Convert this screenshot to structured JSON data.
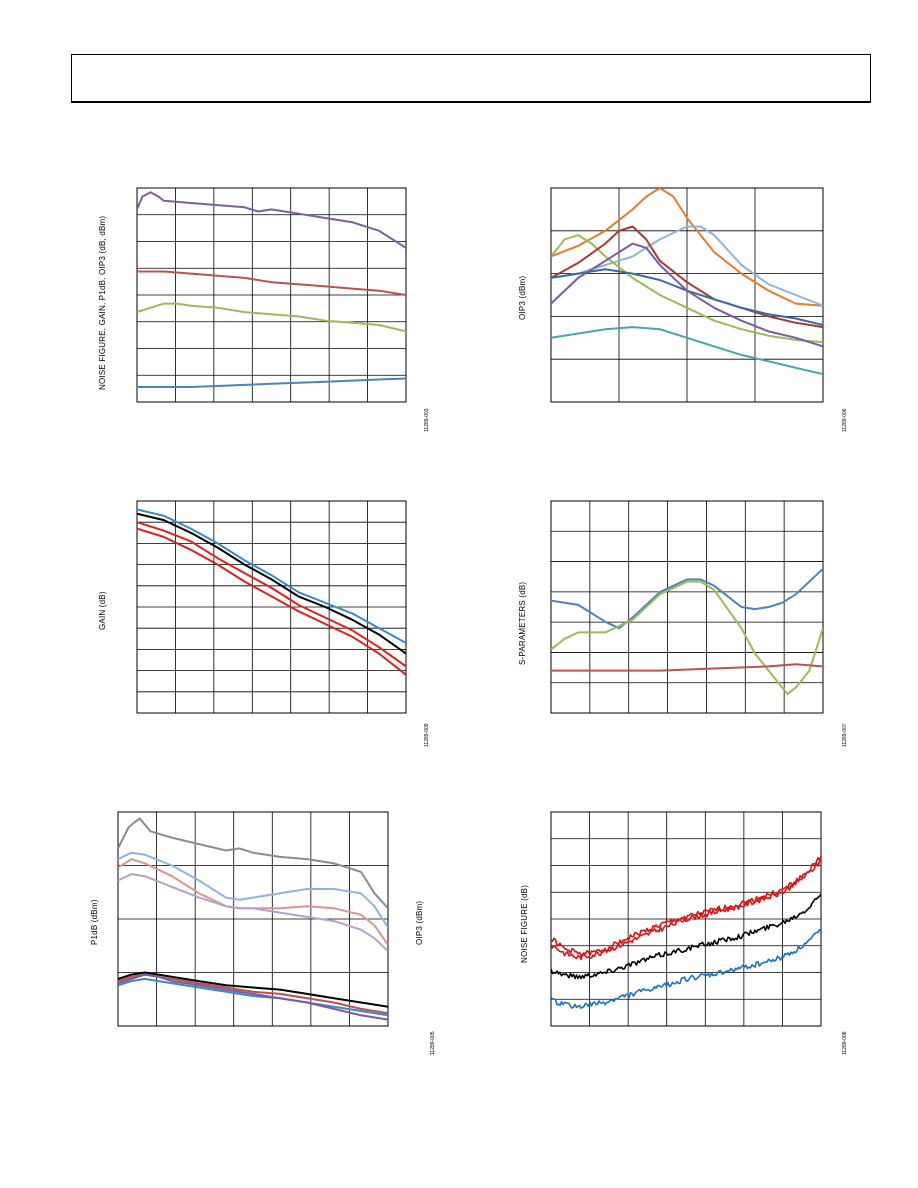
{
  "page": {
    "header_text": ""
  },
  "chart_data": [
    {
      "id": "chart-nf-gain-p1db-oip3",
      "type": "line",
      "title": "",
      "ylabel": "NOISE FIGURE, GAIN, P1dB, OIP3 (dB, dBm)",
      "figure_id": "11289-003",
      "grid": true,
      "series": [
        {
          "color": "#7d5fa0",
          "x": [
            0,
            0.02,
            0.05,
            0.08,
            0.1,
            0.2,
            0.3,
            0.4,
            0.45,
            0.5,
            0.6,
            0.7,
            0.8,
            0.9,
            1.0
          ],
          "y": [
            0.9,
            0.96,
            0.98,
            0.96,
            0.94,
            0.93,
            0.92,
            0.91,
            0.89,
            0.9,
            0.88,
            0.86,
            0.84,
            0.8,
            0.72
          ]
        },
        {
          "color": "#c0504d",
          "x": [
            0,
            0.1,
            0.2,
            0.3,
            0.4,
            0.5,
            0.6,
            0.7,
            0.8,
            0.9,
            1.0
          ],
          "y": [
            0.61,
            0.61,
            0.6,
            0.59,
            0.58,
            0.56,
            0.55,
            0.54,
            0.53,
            0.52,
            0.5
          ]
        },
        {
          "color": "#9bbb59",
          "x": [
            0,
            0.05,
            0.1,
            0.15,
            0.2,
            0.3,
            0.4,
            0.5,
            0.6,
            0.7,
            0.8,
            0.9,
            1.0
          ],
          "y": [
            0.42,
            0.44,
            0.46,
            0.46,
            0.45,
            0.44,
            0.42,
            0.41,
            0.4,
            0.38,
            0.37,
            0.36,
            0.33
          ]
        },
        {
          "color": "#4f81bd",
          "x": [
            0,
            0.1,
            0.2,
            0.3,
            0.4,
            0.5,
            0.6,
            0.7,
            0.8,
            0.9,
            1.0
          ],
          "y": [
            0.07,
            0.07,
            0.07,
            0.075,
            0.08,
            0.085,
            0.09,
            0.095,
            0.1,
            0.105,
            0.11
          ]
        }
      ]
    },
    {
      "id": "chart-oip3",
      "type": "line",
      "title": "",
      "ylabel": "OIP3 (dBm)",
      "figure_id": "11289-006",
      "grid": true,
      "series": [
        {
          "color": "#e47c2a",
          "x": [
            0,
            0.1,
            0.2,
            0.3,
            0.35,
            0.4,
            0.45,
            0.5,
            0.6,
            0.7,
            0.8,
            0.9,
            1.0
          ],
          "y": [
            0.68,
            0.73,
            0.8,
            0.9,
            0.96,
            1.0,
            0.96,
            0.86,
            0.7,
            0.6,
            0.52,
            0.46,
            0.45
          ]
        },
        {
          "color": "#95b3d7",
          "x": [
            0,
            0.1,
            0.2,
            0.3,
            0.4,
            0.5,
            0.55,
            0.6,
            0.7,
            0.8,
            0.9,
            1.0
          ],
          "y": [
            0.58,
            0.6,
            0.64,
            0.68,
            0.76,
            0.82,
            0.82,
            0.78,
            0.64,
            0.55,
            0.5,
            0.45
          ]
        },
        {
          "color": "#9bbb59",
          "x": [
            0,
            0.05,
            0.1,
            0.15,
            0.2,
            0.3,
            0.4,
            0.5,
            0.6,
            0.7,
            0.8,
            0.9,
            1.0
          ],
          "y": [
            0.68,
            0.76,
            0.78,
            0.74,
            0.68,
            0.58,
            0.5,
            0.44,
            0.38,
            0.34,
            0.31,
            0.29,
            0.28
          ]
        },
        {
          "color": "#a33b38",
          "x": [
            0,
            0.1,
            0.2,
            0.25,
            0.3,
            0.35,
            0.4,
            0.5,
            0.6,
            0.7,
            0.8,
            0.9,
            1.0
          ],
          "y": [
            0.58,
            0.65,
            0.74,
            0.8,
            0.82,
            0.76,
            0.66,
            0.56,
            0.48,
            0.44,
            0.4,
            0.37,
            0.35
          ]
        },
        {
          "color": "#3d6aa2",
          "x": [
            0,
            0.1,
            0.2,
            0.3,
            0.4,
            0.5,
            0.6,
            0.7,
            0.8,
            0.9,
            1.0
          ],
          "y": [
            0.58,
            0.6,
            0.62,
            0.6,
            0.57,
            0.52,
            0.48,
            0.44,
            0.41,
            0.39,
            0.36
          ]
        },
        {
          "color": "#7b5aa6",
          "x": [
            0,
            0.1,
            0.2,
            0.3,
            0.35,
            0.4,
            0.5,
            0.6,
            0.7,
            0.8,
            0.9,
            1.0
          ],
          "y": [
            0.46,
            0.58,
            0.66,
            0.74,
            0.72,
            0.64,
            0.52,
            0.44,
            0.38,
            0.33,
            0.3,
            0.26
          ]
        },
        {
          "color": "#4aa3b0",
          "x": [
            0,
            0.1,
            0.2,
            0.3,
            0.4,
            0.5,
            0.6,
            0.7,
            0.8,
            0.9,
            1.0
          ],
          "y": [
            0.3,
            0.32,
            0.34,
            0.35,
            0.34,
            0.3,
            0.26,
            0.22,
            0.19,
            0.16,
            0.13
          ]
        }
      ]
    },
    {
      "id": "chart-gain",
      "type": "line",
      "title": "",
      "ylabel": "GAIN (dB)",
      "figure_id": "11289-009",
      "grid": true,
      "series": [
        {
          "color": "#3a8ac4",
          "x": [
            0,
            0.1,
            0.2,
            0.3,
            0.4,
            0.5,
            0.6,
            0.7,
            0.8,
            0.9,
            1.0
          ],
          "y": [
            0.96,
            0.93,
            0.87,
            0.8,
            0.72,
            0.65,
            0.57,
            0.52,
            0.47,
            0.4,
            0.33
          ]
        },
        {
          "color": "#000000",
          "x": [
            0,
            0.1,
            0.2,
            0.3,
            0.4,
            0.5,
            0.6,
            0.7,
            0.8,
            0.9,
            1.0
          ],
          "y": [
            0.94,
            0.91,
            0.85,
            0.78,
            0.7,
            0.63,
            0.55,
            0.5,
            0.44,
            0.37,
            0.28
          ]
        },
        {
          "color": "#e02020",
          "x": [
            0,
            0.1,
            0.2,
            0.3,
            0.4,
            0.5,
            0.6,
            0.7,
            0.8,
            0.9,
            1.0
          ],
          "y": [
            0.9,
            0.86,
            0.81,
            0.73,
            0.66,
            0.59,
            0.51,
            0.45,
            0.39,
            0.31,
            0.22
          ]
        },
        {
          "color": "#e02020",
          "x": [
            0,
            0.1,
            0.2,
            0.3,
            0.4,
            0.5,
            0.6,
            0.7,
            0.8,
            0.9,
            1.0
          ],
          "y": [
            0.87,
            0.83,
            0.77,
            0.7,
            0.62,
            0.55,
            0.48,
            0.42,
            0.36,
            0.28,
            0.18
          ]
        }
      ]
    },
    {
      "id": "chart-s-parameters",
      "type": "line",
      "title": "",
      "ylabel": "S-PARAMETERS (dB)",
      "figure_id": "11289-007",
      "grid": true,
      "series": [
        {
          "color": "#4f81bd",
          "x": [
            0,
            0.1,
            0.2,
            0.25,
            0.3,
            0.4,
            0.5,
            0.55,
            0.6,
            0.7,
            0.75,
            0.8,
            0.85,
            0.9,
            1.0
          ],
          "y": [
            0.53,
            0.51,
            0.43,
            0.4,
            0.45,
            0.57,
            0.63,
            0.63,
            0.6,
            0.5,
            0.49,
            0.5,
            0.52,
            0.56,
            0.68
          ]
        },
        {
          "color": "#9bbb59",
          "x": [
            0,
            0.05,
            0.1,
            0.2,
            0.3,
            0.4,
            0.5,
            0.55,
            0.6,
            0.7,
            0.75,
            0.8,
            0.85,
            0.87,
            0.9,
            0.95,
            1.0
          ],
          "y": [
            0.3,
            0.35,
            0.38,
            0.38,
            0.44,
            0.56,
            0.62,
            0.62,
            0.58,
            0.4,
            0.28,
            0.2,
            0.12,
            0.09,
            0.12,
            0.2,
            0.4
          ]
        },
        {
          "color": "#c0504d",
          "x": [
            0,
            0.2,
            0.4,
            0.6,
            0.8,
            0.9,
            1.0
          ],
          "y": [
            0.2,
            0.2,
            0.2,
            0.21,
            0.22,
            0.23,
            0.22
          ]
        }
      ]
    },
    {
      "id": "chart-p1db-oip3",
      "type": "line",
      "title": "",
      "ylabel": "P1dB (dBm)",
      "ylabel_right": "OIP3 (dBm)",
      "figure_id": "11289-005",
      "grid": true,
      "series": [
        {
          "color": "#8c8c8c",
          "x": [
            0,
            0.04,
            0.08,
            0.12,
            0.2,
            0.3,
            0.4,
            0.45,
            0.5,
            0.6,
            0.7,
            0.8,
            0.85,
            0.9,
            0.95,
            1.0
          ],
          "y": [
            0.83,
            0.93,
            0.97,
            0.91,
            0.88,
            0.85,
            0.82,
            0.83,
            0.81,
            0.79,
            0.78,
            0.76,
            0.74,
            0.72,
            0.62,
            0.55
          ]
        },
        {
          "color": "#8eb4e3",
          "x": [
            0,
            0.05,
            0.1,
            0.2,
            0.3,
            0.4,
            0.45,
            0.5,
            0.6,
            0.7,
            0.8,
            0.9,
            0.95,
            1.0
          ],
          "y": [
            0.78,
            0.81,
            0.8,
            0.75,
            0.68,
            0.6,
            0.59,
            0.6,
            0.62,
            0.64,
            0.64,
            0.62,
            0.56,
            0.46
          ]
        },
        {
          "color": "#d99594",
          "x": [
            0,
            0.05,
            0.1,
            0.2,
            0.3,
            0.4,
            0.45,
            0.5,
            0.6,
            0.7,
            0.8,
            0.9,
            0.95,
            1.0
          ],
          "y": [
            0.74,
            0.78,
            0.76,
            0.7,
            0.62,
            0.56,
            0.55,
            0.55,
            0.55,
            0.56,
            0.55,
            0.52,
            0.47,
            0.38
          ]
        },
        {
          "color": "#b3a2c7",
          "x": [
            0,
            0.05,
            0.1,
            0.2,
            0.3,
            0.4,
            0.45,
            0.5,
            0.6,
            0.7,
            0.8,
            0.9,
            0.95,
            1.0
          ],
          "y": [
            0.68,
            0.71,
            0.7,
            0.65,
            0.6,
            0.56,
            0.55,
            0.55,
            0.53,
            0.51,
            0.49,
            0.45,
            0.41,
            0.35
          ]
        },
        {
          "color": "#000000",
          "x": [
            0,
            0.05,
            0.1,
            0.15,
            0.2,
            0.3,
            0.4,
            0.5,
            0.6,
            0.7,
            0.8,
            0.9,
            1.0
          ],
          "y": [
            0.22,
            0.24,
            0.25,
            0.24,
            0.23,
            0.21,
            0.19,
            0.18,
            0.17,
            0.15,
            0.13,
            0.11,
            0.09
          ]
        },
        {
          "color": "#c0504d",
          "x": [
            0,
            0.05,
            0.1,
            0.15,
            0.2,
            0.3,
            0.4,
            0.5,
            0.6,
            0.7,
            0.8,
            0.9,
            1.0
          ],
          "y": [
            0.21,
            0.23,
            0.24,
            0.23,
            0.22,
            0.2,
            0.18,
            0.16,
            0.15,
            0.13,
            0.11,
            0.08,
            0.06
          ]
        },
        {
          "color": "#3a8ac4",
          "x": [
            0,
            0.05,
            0.1,
            0.15,
            0.2,
            0.3,
            0.4,
            0.5,
            0.6,
            0.7,
            0.8,
            0.9,
            1.0
          ],
          "y": [
            0.19,
            0.21,
            0.22,
            0.21,
            0.2,
            0.18,
            0.16,
            0.14,
            0.13,
            0.11,
            0.09,
            0.07,
            0.05
          ]
        },
        {
          "color": "#7b5aa6",
          "x": [
            0,
            0.05,
            0.1,
            0.15,
            0.2,
            0.3,
            0.4,
            0.5,
            0.6,
            0.7,
            0.8,
            0.9,
            1.0
          ],
          "y": [
            0.2,
            0.22,
            0.24,
            0.23,
            0.21,
            0.19,
            0.17,
            0.15,
            0.13,
            0.11,
            0.08,
            0.05,
            0.03
          ]
        }
      ]
    },
    {
      "id": "chart-noise-figure",
      "type": "line",
      "title": "",
      "ylabel": "NOISE FIGURE (dB)",
      "figure_id": "11289-008",
      "grid": true,
      "series": [
        {
          "color": "#e01010",
          "noisy": true,
          "x": [
            0,
            0.05,
            0.1,
            0.15,
            0.2,
            0.3,
            0.4,
            0.5,
            0.6,
            0.7,
            0.8,
            0.85,
            0.9,
            0.95,
            1.0
          ],
          "y": [
            0.41,
            0.36,
            0.34,
            0.34,
            0.36,
            0.42,
            0.47,
            0.51,
            0.54,
            0.57,
            0.61,
            0.63,
            0.67,
            0.72,
            0.79
          ]
        },
        {
          "color": "#e01010",
          "noisy": true,
          "x": [
            0,
            0.05,
            0.1,
            0.15,
            0.2,
            0.3,
            0.4,
            0.5,
            0.6,
            0.7,
            0.8,
            0.85,
            0.9,
            0.95,
            1.0
          ],
          "y": [
            0.38,
            0.34,
            0.32,
            0.33,
            0.35,
            0.4,
            0.45,
            0.5,
            0.53,
            0.56,
            0.6,
            0.62,
            0.66,
            0.71,
            0.77
          ]
        },
        {
          "color": "#000000",
          "noisy": true,
          "x": [
            0,
            0.05,
            0.1,
            0.15,
            0.2,
            0.3,
            0.4,
            0.5,
            0.6,
            0.7,
            0.8,
            0.85,
            0.9,
            0.95,
            1.0
          ],
          "y": [
            0.26,
            0.24,
            0.23,
            0.24,
            0.25,
            0.29,
            0.33,
            0.36,
            0.39,
            0.42,
            0.46,
            0.48,
            0.51,
            0.55,
            0.62
          ]
        },
        {
          "color": "#1a73c4",
          "noisy": true,
          "x": [
            0,
            0.05,
            0.1,
            0.15,
            0.2,
            0.3,
            0.4,
            0.5,
            0.6,
            0.7,
            0.8,
            0.85,
            0.9,
            0.95,
            1.0
          ],
          "y": [
            0.12,
            0.1,
            0.09,
            0.1,
            0.11,
            0.15,
            0.18,
            0.22,
            0.24,
            0.27,
            0.3,
            0.32,
            0.35,
            0.39,
            0.45
          ]
        }
      ]
    }
  ]
}
